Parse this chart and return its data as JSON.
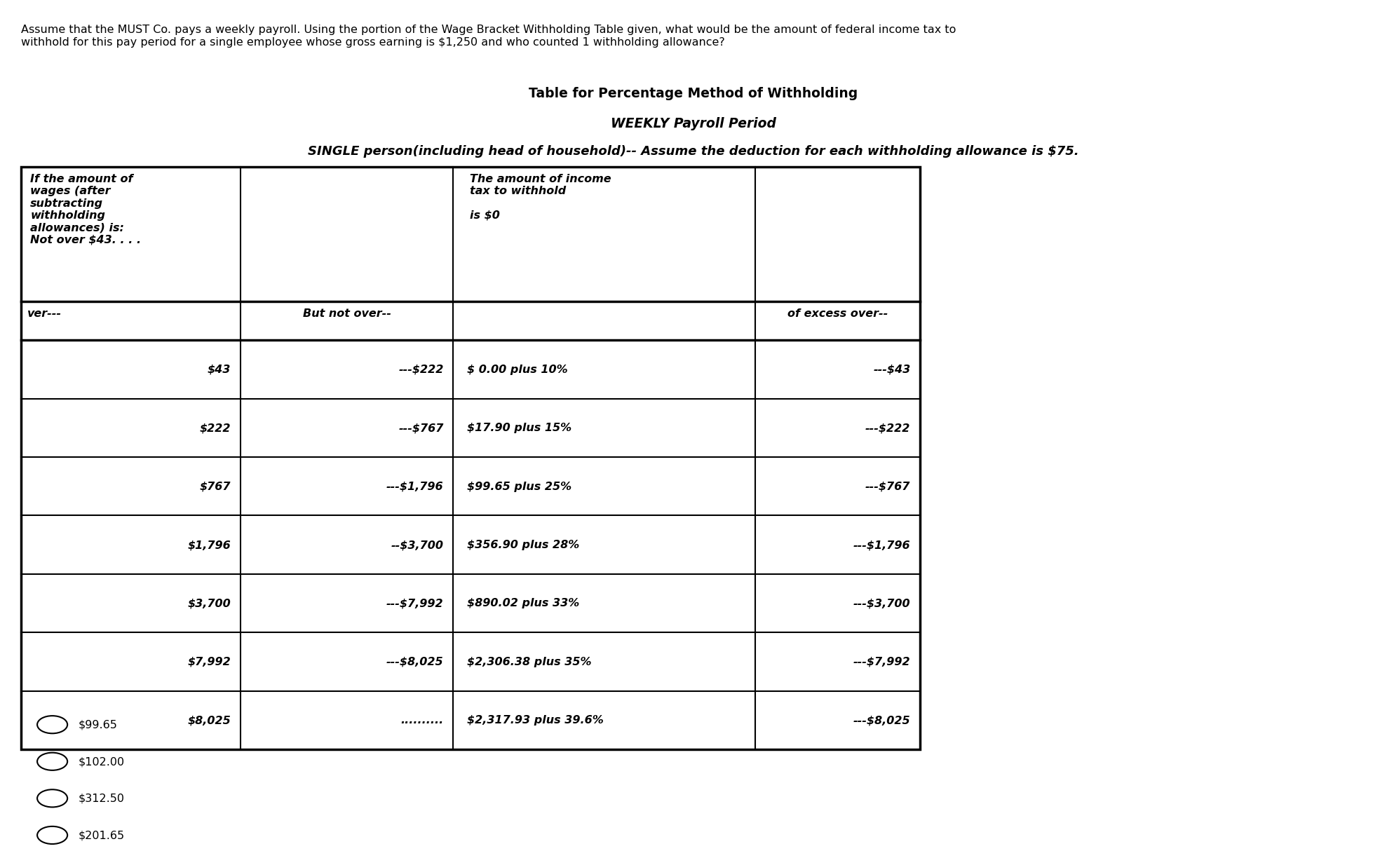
{
  "question": "Assume that the MUST Co. pays a weekly payroll. Using the portion of the Wage Bracket Withholding Table given, what would be the amount of federal income tax to\nwithhold for this pay period for a single employee whose gross earning is $1,250 and who counted 1 withholding allowance?",
  "title1": "Table for Percentage Method of Withholding",
  "title2": "WEEKLY Payroll Period",
  "title3": "SINGLE person(including head of household)-- Assume the deduction for each withholding allowance is $75.",
  "header_col1": "If the amount of\nwages (after\nsubtracting\nwithholding\nallowances) is:\nNot over $43. . . .",
  "header_col3": "The amount of income\ntax to withhold\n\nis $0",
  "subheader_col1": "ver---",
  "subheader_col2": "But not over--",
  "subheader_col4": "of excess over--",
  "rows": [
    {
      "col1": "$43",
      "col2": "---$222",
      "col3": "$ 0.00 plus 10%",
      "col4": "---$43"
    },
    {
      "col1": "$222",
      "col2": "---$767",
      "col3": "$17.90 plus 15%",
      "col4": "---$222"
    },
    {
      "col1": "$767",
      "col2": "---$1,796",
      "col3": "$99.65 plus 25%",
      "col4": "---$767"
    },
    {
      "col1": "$1,796",
      "col2": "--$3,700",
      "col3": "$356.90 plus 28%",
      "col4": "---$1,796"
    },
    {
      "col1": "$3,700",
      "col2": "---$7,992",
      "col3": "$890.02 plus 33%",
      "col4": "---$3,700"
    },
    {
      "col1": "$7,992",
      "col2": "---$8,025",
      "col3": "$2,306.38 plus 35%",
      "col4": "---$7,992"
    },
    {
      "col1": "$8,025",
      "col2": "..........",
      "col3": "$2,317.93 plus 39.6%",
      "col4": "---$8,025"
    }
  ],
  "choices": [
    "$99.65",
    "$102.00",
    "$312.50",
    "$201.65"
  ],
  "bg_color": "#ffffff",
  "font_size_question": 11.5,
  "font_size_title1": 13.5,
  "font_size_title2": 13.5,
  "font_size_title3": 13.0,
  "font_size_table": 11.5
}
